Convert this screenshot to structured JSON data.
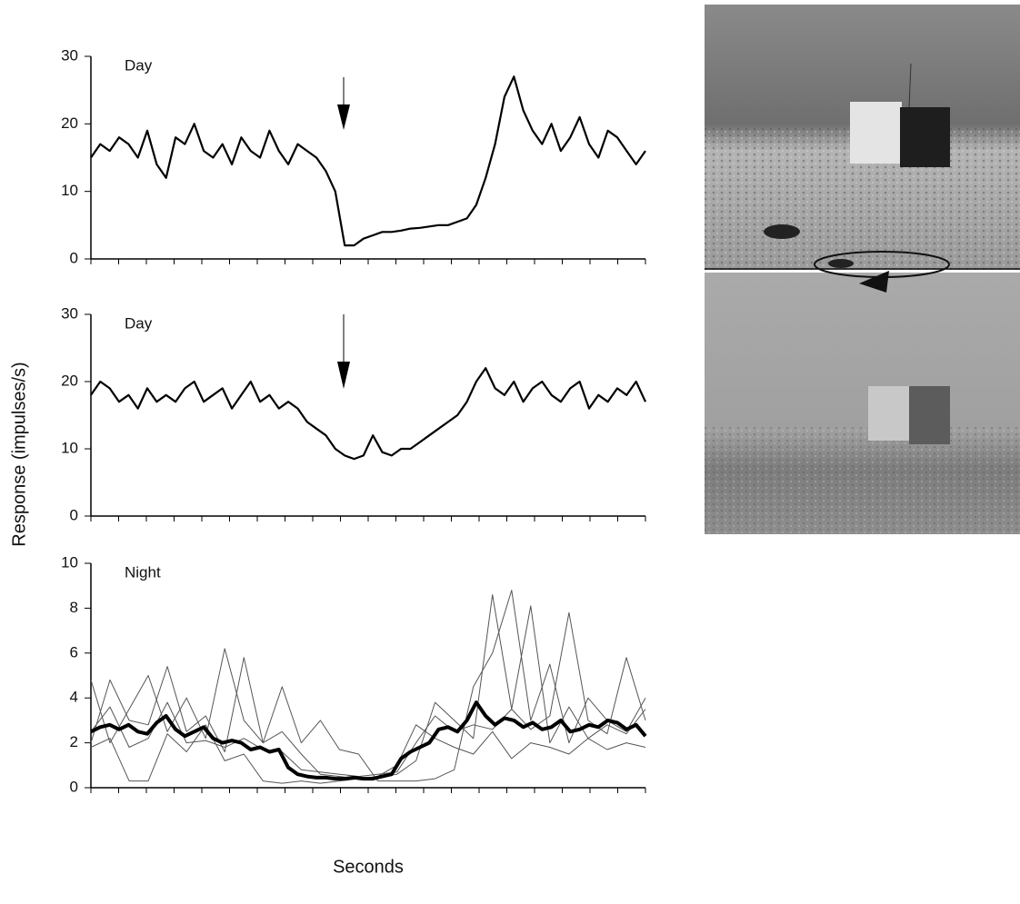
{
  "chart_data": [
    {
      "type": "line",
      "annotation": "Day",
      "ylim": [
        0,
        30
      ],
      "yticks": [
        0,
        10,
        20,
        30
      ],
      "series": [
        {
          "color": "#000000",
          "linewidth": 2.2,
          "values": [
            15,
            17,
            16,
            18,
            17,
            15,
            19,
            14,
            12,
            18,
            17,
            20,
            16,
            15,
            17,
            14,
            18,
            16,
            15,
            19,
            16,
            14,
            17,
            16,
            15,
            13,
            10,
            2,
            2,
            3,
            3.5,
            4,
            4,
            4.2,
            4.5,
            4.6,
            4.8,
            5,
            5,
            5.5,
            6,
            8,
            12,
            17,
            24,
            27,
            22,
            19,
            17,
            20,
            16,
            18,
            21,
            17,
            15,
            19,
            18,
            16,
            14,
            16
          ]
        }
      ]
    },
    {
      "type": "line",
      "annotation": "Day",
      "ylabel": "Response (impulses/s)",
      "ylim": [
        0,
        30
      ],
      "yticks": [
        0,
        10,
        20,
        30
      ],
      "series": [
        {
          "color": "#000000",
          "linewidth": 2.2,
          "values": [
            18,
            20,
            19,
            17,
            18,
            16,
            19,
            17,
            18,
            17,
            19,
            20,
            17,
            18,
            19,
            16,
            18,
            20,
            17,
            18,
            16,
            17,
            16,
            14,
            13,
            12,
            10,
            9,
            8.5,
            9,
            12,
            9.5,
            9,
            10,
            10,
            11,
            12,
            13,
            14,
            15,
            17,
            20,
            22,
            19,
            18,
            20,
            17,
            19,
            20,
            18,
            17,
            19,
            20,
            16,
            18,
            17,
            19,
            18,
            20,
            17
          ]
        }
      ]
    },
    {
      "type": "line",
      "annotation": "Night",
      "xlabel": "Seconds",
      "ylim": [
        0,
        10
      ],
      "yticks": [
        0,
        2,
        4,
        6,
        8,
        10
      ],
      "series": [
        {
          "color": "#555555",
          "linewidth": 1,
          "values": [
            4.8,
            2,
            3.5,
            5,
            2.5,
            4,
            2.2,
            6.2,
            3,
            2,
            4.5,
            2,
            3,
            1.7,
            1.5,
            0.3,
            0.3,
            0.3,
            0.4,
            0.8,
            4.5,
            6,
            8.8,
            3,
            5.5,
            2,
            4,
            3,
            2.5,
            4
          ]
        },
        {
          "color": "#555555",
          "linewidth": 1,
          "values": [
            2,
            4.8,
            3,
            2.8,
            5.4,
            2.5,
            3.2,
            1.6,
            5.8,
            2,
            2.5,
            1.5,
            0.6,
            0.5,
            0.4,
            0.5,
            0.6,
            1.2,
            3.8,
            3,
            2.2,
            8.6,
            3.5,
            2.6,
            3.2,
            7.8,
            3,
            2.4,
            5.8,
            3
          ]
        },
        {
          "color": "#555555",
          "linewidth": 1,
          "values": [
            2.5,
            3.6,
            1.8,
            2.2,
            3.8,
            2,
            2.1,
            1.8,
            2.2,
            1.7,
            1.6,
            0.8,
            0.7,
            0.6,
            0.5,
            0.6,
            0.7,
            2,
            3.2,
            2.5,
            2.8,
            2.6,
            3.5,
            8.1,
            2,
            3.6,
            2.2,
            2.8,
            2.4,
            3.5
          ]
        },
        {
          "color": "#555555",
          "linewidth": 1,
          "values": [
            1.8,
            2.2,
            0.3,
            0.3,
            2.4,
            1.6,
            2.8,
            1.2,
            1.5,
            0.3,
            0.2,
            0.3,
            0.2,
            0.3,
            0.4,
            0.5,
            1,
            2.8,
            2.2,
            1.8,
            1.5,
            2.5,
            1.3,
            2,
            1.8,
            1.5,
            2.2,
            1.7,
            2,
            1.8
          ]
        },
        {
          "color": "#000000",
          "linewidth": 4,
          "values": [
            2.5,
            2.7,
            2.8,
            2.6,
            2.8,
            2.5,
            2.4,
            2.9,
            3.2,
            2.6,
            2.3,
            2.5,
            2.7,
            2.2,
            2.0,
            2.1,
            2.0,
            1.7,
            1.8,
            1.6,
            1.7,
            0.9,
            0.6,
            0.5,
            0.45,
            0.45,
            0.4,
            0.4,
            0.45,
            0.4,
            0.4,
            0.5,
            0.6,
            1.3,
            1.6,
            1.8,
            2.0,
            2.6,
            2.7,
            2.5,
            3.0,
            3.8,
            3.2,
            2.8,
            3.1,
            3.0,
            2.7,
            2.9,
            2.6,
            2.7,
            3.0,
            2.5,
            2.6,
            2.8,
            2.7,
            3.0,
            2.9,
            2.6,
            2.8,
            2.3
          ]
        }
      ]
    }
  ]
}
